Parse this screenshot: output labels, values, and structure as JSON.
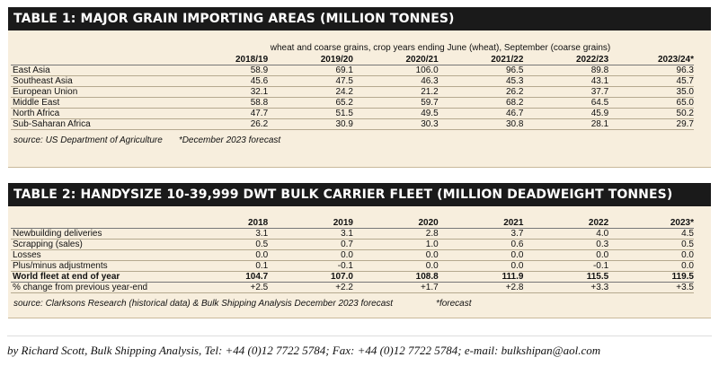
{
  "table1": {
    "title": "TABLE 1:  MAJOR GRAIN IMPORTING AREAS (MILLION TONNES)",
    "subtitle": "wheat and coarse grains, crop years ending June (wheat), September (coarse grains)",
    "columns": [
      "2018/19",
      "2019/20",
      "2020/21",
      "2021/22",
      "2022/23",
      "2023/24*"
    ],
    "rows": [
      {
        "label": "East Asia",
        "values": [
          "58.9",
          "69.1",
          "106.0",
          "96.5",
          "89.8",
          "96.3"
        ]
      },
      {
        "label": "Southeast Asia",
        "values": [
          "45.6",
          "47.5",
          "46.3",
          "45.3",
          "43.1",
          "45.7"
        ]
      },
      {
        "label": "European Union",
        "values": [
          "32.1",
          "24.2",
          "21.2",
          "26.2",
          "37.7",
          "35.0"
        ]
      },
      {
        "label": "Middle East",
        "values": [
          "58.8",
          "65.2",
          "59.7",
          "68.2",
          "64.5",
          "65.0"
        ]
      },
      {
        "label": "North Africa",
        "values": [
          "47.7",
          "51.5",
          "49.5",
          "46.7",
          "45.9",
          "50.2"
        ]
      },
      {
        "label": "Sub-Saharan Africa",
        "values": [
          "26.2",
          "30.9",
          "30.3",
          "30.8",
          "28.1",
          "29.7"
        ]
      }
    ],
    "source": "source:  US Department of Agriculture",
    "note": "*December 2023 forecast"
  },
  "table2": {
    "title": "TABLE 2:  HANDYSIZE 10-39,999 DWT BULK CARRIER FLEET (MILLION DEADWEIGHT TONNES)",
    "columns": [
      "2018",
      "2019",
      "2020",
      "2021",
      "2022",
      "2023*"
    ],
    "rows": [
      {
        "label": "Newbuilding deliveries",
        "values": [
          "3.1",
          "3.1",
          "2.8",
          "3.7",
          "4.0",
          "4.5"
        ]
      },
      {
        "label": "Scrapping (sales)",
        "values": [
          "0.5",
          "0.7",
          "1.0",
          "0.6",
          "0.3",
          "0.5"
        ]
      },
      {
        "label": "Losses",
        "values": [
          "0.0",
          "0.0",
          "0.0",
          "0.0",
          "0.0",
          "0.0"
        ]
      },
      {
        "label": "Plus/minus adjustments",
        "values": [
          "0.1",
          "-0.1",
          "0.0",
          "0.0",
          "-0.1",
          "0.0"
        ]
      },
      {
        "label": "World fleet at end of year",
        "values": [
          "104.7",
          "107.0",
          "108.8",
          "111.9",
          "115.5",
          "119.5"
        ]
      },
      {
        "label": "% change from previous year-end",
        "values": [
          "+2.5",
          "+2.2",
          "+1.7",
          "+2.8",
          "+3.3",
          "+3.5"
        ]
      }
    ],
    "source": "source: Clarksons Research (historical data) & Bulk Shipping Analysis December 2023 forecast",
    "note": "*forecast"
  },
  "byline": "by Richard Scott, Bulk Shipping Analysis, Tel: +44 (0)12 7722 5784; Fax: +44 (0)12 7722 5784; e-mail: bulkshipan@aol.com"
}
